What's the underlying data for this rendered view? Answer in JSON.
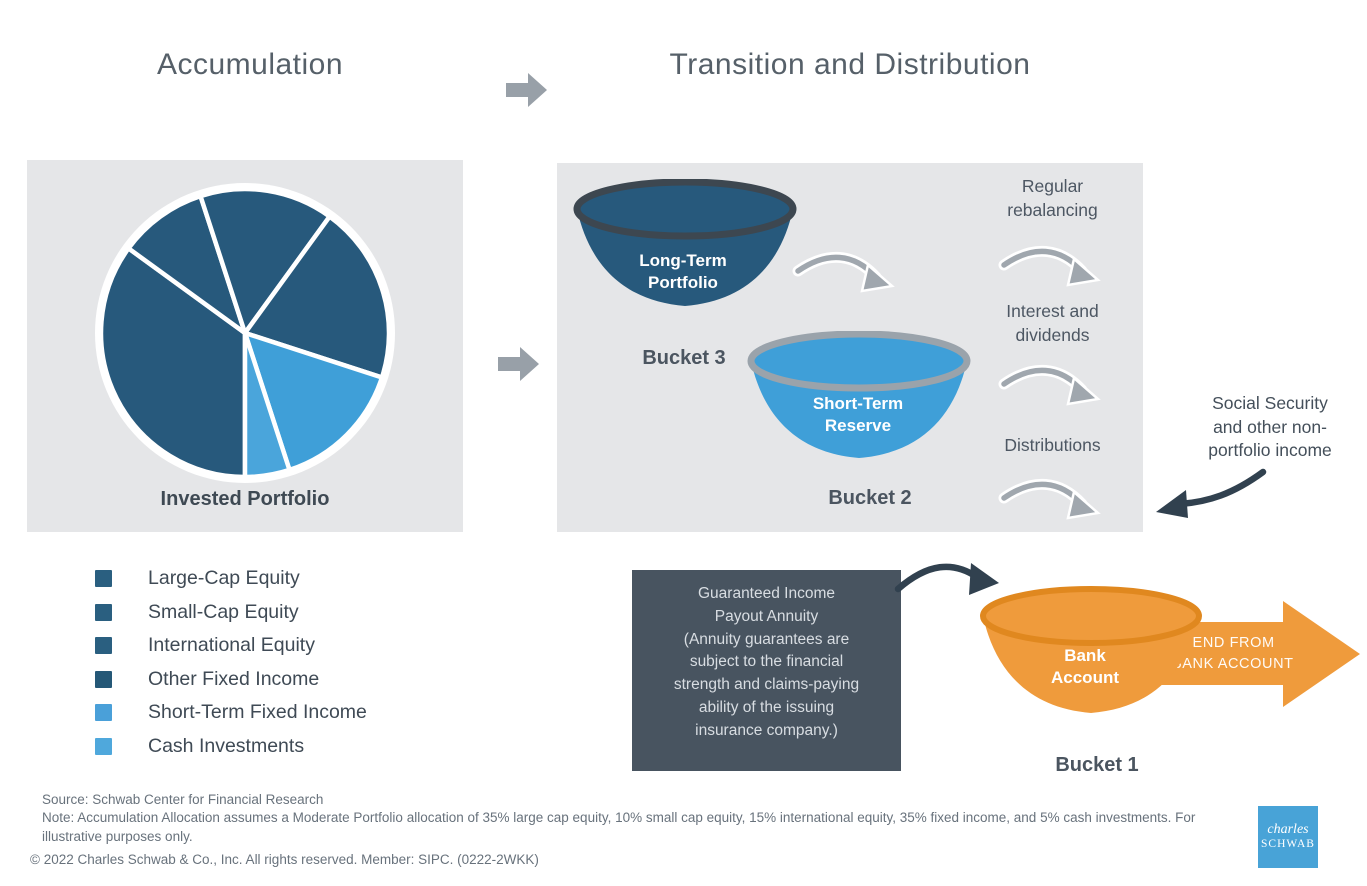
{
  "header": {
    "left_title": "Accumulation",
    "right_title": "Transition and Distribution"
  },
  "chart_data": {
    "type": "pie",
    "title": "Invested Portfolio",
    "labels": [
      "Large-Cap Equity",
      "Small-Cap Equity",
      "International Equity",
      "Other Fixed Income",
      "Short-Term Fixed Income",
      "Cash Investments"
    ],
    "values": [
      35,
      10,
      15,
      20,
      15,
      5
    ],
    "colors": [
      "#27597c",
      "#27597c",
      "#27597c",
      "#27597c",
      "#3f9fd8",
      "#4aa5db"
    ],
    "start_angle_deg": 180,
    "direction": "clockwise",
    "legend_position": "below-left",
    "caption": "Invested Portfolio"
  },
  "legend": {
    "items": [
      {
        "label": "Large-Cap Equity",
        "color": "#2a5f80"
      },
      {
        "label": "Small-Cap Equity",
        "color": "#2a5f80"
      },
      {
        "label": "International Equity",
        "color": "#2a5f80"
      },
      {
        "label": "Other Fixed Income",
        "color": "#255877"
      },
      {
        "label": "Short-Term Fixed Income",
        "color": "#4aa0d9"
      },
      {
        "label": "Cash Investments",
        "color": "#4fa8dc"
      }
    ]
  },
  "buckets": {
    "bucket3": {
      "funnel_label": "Long-Term\nPortfolio",
      "caption": "Bucket 3",
      "fill": "#27597c",
      "rim": "#3d4750"
    },
    "bucket2": {
      "funnel_label": "Short-Term\nReserve",
      "caption": "Bucket 2",
      "fill": "#3f9fd8",
      "rim": "#9aa3ab"
    },
    "bucket1": {
      "funnel_label": "Bank\nAccount",
      "caption": "Bucket 1",
      "fill": "#ef9b3c",
      "rim": "#e0881f"
    }
  },
  "flows": {
    "items": [
      {
        "label": "Regular\nrebalancing"
      },
      {
        "label": "Interest and\ndividends"
      },
      {
        "label": "Distributions"
      }
    ]
  },
  "social_note": "Social Security\nand other non-\nportfolio income",
  "annuity_box": {
    "text": "Guaranteed Income\nPayout Annuity\n(Annuity guarantees are\nsubject to the financial\nstrength and claims-paying\nability of the issuing\ninsurance company.)",
    "background": "#485460"
  },
  "spend_arrow": {
    "label": "SPEND FROM\nBANK ACCOUNT",
    "color": "#ef9b3c"
  },
  "footer": {
    "source": "Source: Schwab Center for Financial Research",
    "note": "Note: Accumulation Allocation assumes a Moderate Portfolio allocation of 35% large cap equity, 10% small cap equity, 15% international equity, 35% fixed income, and 5% cash investments.  For illustrative purposes only.",
    "copyright": "© 2022 Charles Schwab & Co., Inc. All rights reserved. Member: SIPC. (0222-2WKK)"
  },
  "logo": {
    "line1": "charles",
    "line2": "SCHWAB",
    "color": "#48a3d7"
  }
}
